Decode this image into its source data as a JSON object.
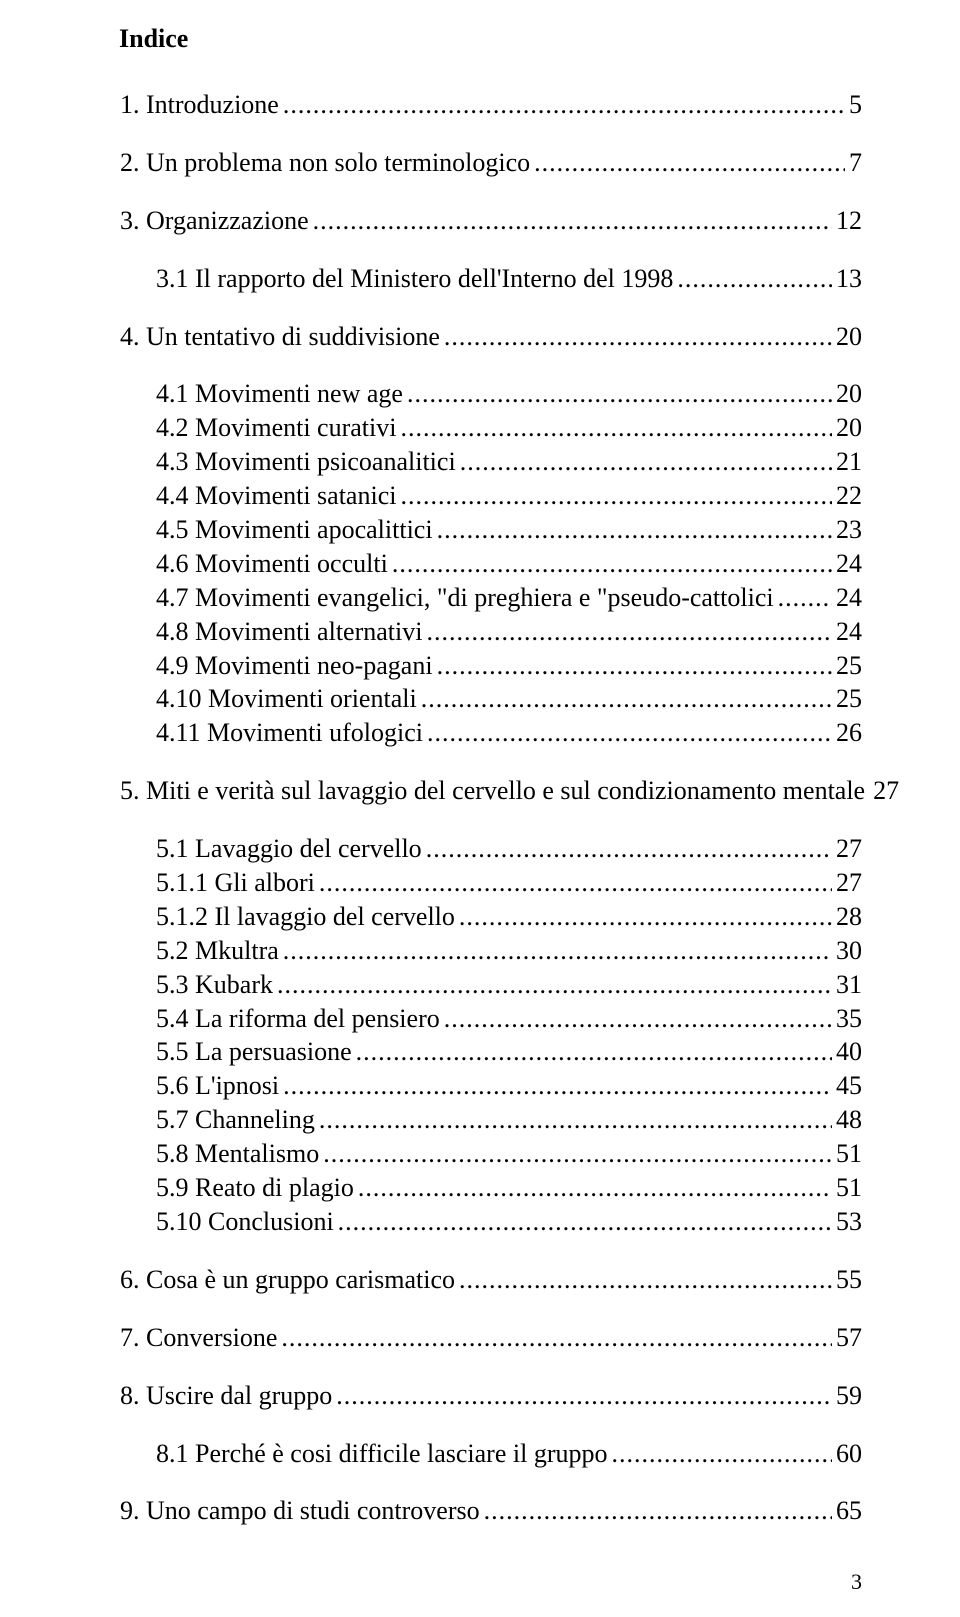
{
  "title": "Indice",
  "page_number": "3",
  "entries": [
    {
      "level": 0,
      "label": "1. Introduzione",
      "page": "5"
    },
    {
      "level": 0,
      "label": "2. Un problema non solo terminologico",
      "page": "7"
    },
    {
      "level": 0,
      "label": "3. Organizzazione",
      "page": "12"
    },
    {
      "level": 1,
      "first_sub": true,
      "label": "3.1 Il rapporto del Ministero dell'Interno del 1998",
      "page": " 13"
    },
    {
      "level": 0,
      "label": "4. Un tentativo di suddivisione",
      "page": "20"
    },
    {
      "level": 1,
      "first_sub": true,
      "label": "4.1 Movimenti new age",
      "page": " 20"
    },
    {
      "level": 1,
      "label": "4.2 Movimenti curativi",
      "page": " 20"
    },
    {
      "level": 1,
      "label": "4.3 Movimenti psicoanalitici",
      "page": " 21"
    },
    {
      "level": 1,
      "label": "4.4 Movimenti satanici",
      "page": " 22"
    },
    {
      "level": 1,
      "label": "4.5 Movimenti apocalittici",
      "page": " 23"
    },
    {
      "level": 1,
      "label": "4.6 Movimenti occulti",
      "page": " 24"
    },
    {
      "level": 1,
      "label": "4.7 Movimenti evangelici, \"di preghiera e \"pseudo-cattolici",
      "page": " 24"
    },
    {
      "level": 1,
      "label": "4.8 Movimenti alternativi",
      "page": " 24"
    },
    {
      "level": 1,
      "label": "4.9 Movimenti neo-pagani",
      "page": " 25"
    },
    {
      "level": 1,
      "label": "4.10 Movimenti orientali",
      "page": " 25"
    },
    {
      "level": 1,
      "label": "4.11 Movimenti ufologici",
      "page": " 26"
    },
    {
      "level": 0,
      "label": "5. Miti e verità sul lavaggio del cervello e sul condizionamento mentale",
      "page": "27"
    },
    {
      "level": 1,
      "first_sub": true,
      "label": "5.1 Lavaggio del cervello",
      "page": " 27"
    },
    {
      "level": 1,
      "label": "5.1.1 Gli albori",
      "page": " 27"
    },
    {
      "level": 1,
      "label": "5.1.2 Il lavaggio del cervello",
      "page": " 28"
    },
    {
      "level": 1,
      "label": "5.2 Mkultra",
      "page": " 30"
    },
    {
      "level": 1,
      "label": "5.3 Kubark",
      "page": " 31"
    },
    {
      "level": 1,
      "label": "5.4 La riforma del pensiero",
      "page": " 35"
    },
    {
      "level": 1,
      "label": "5.5 La persuasione",
      "page": " 40"
    },
    {
      "level": 1,
      "label": "5.6 L'ipnosi",
      "page": " 45"
    },
    {
      "level": 1,
      "label": "5.7 Channeling",
      "page": " 48"
    },
    {
      "level": 1,
      "label": "5.8 Mentalismo",
      "page": " 51"
    },
    {
      "level": 1,
      "label": "5.9 Reato di plagio",
      "page": " 51"
    },
    {
      "level": 1,
      "label": "5.10 Conclusioni",
      "page": " 53"
    },
    {
      "level": 0,
      "label": "6. Cosa è un gruppo carismatico",
      "page": "55"
    },
    {
      "level": 0,
      "label": "7. Conversione",
      "page": "57"
    },
    {
      "level": 0,
      "label": "8. Uscire dal gruppo",
      "page": "59"
    },
    {
      "level": 1,
      "first_sub": true,
      "label": "8.1 Perché è cosi difficile lasciare il gruppo",
      "page": " 60"
    },
    {
      "level": 0,
      "label": "9. Uno campo di studi controverso",
      "page": "65"
    }
  ]
}
